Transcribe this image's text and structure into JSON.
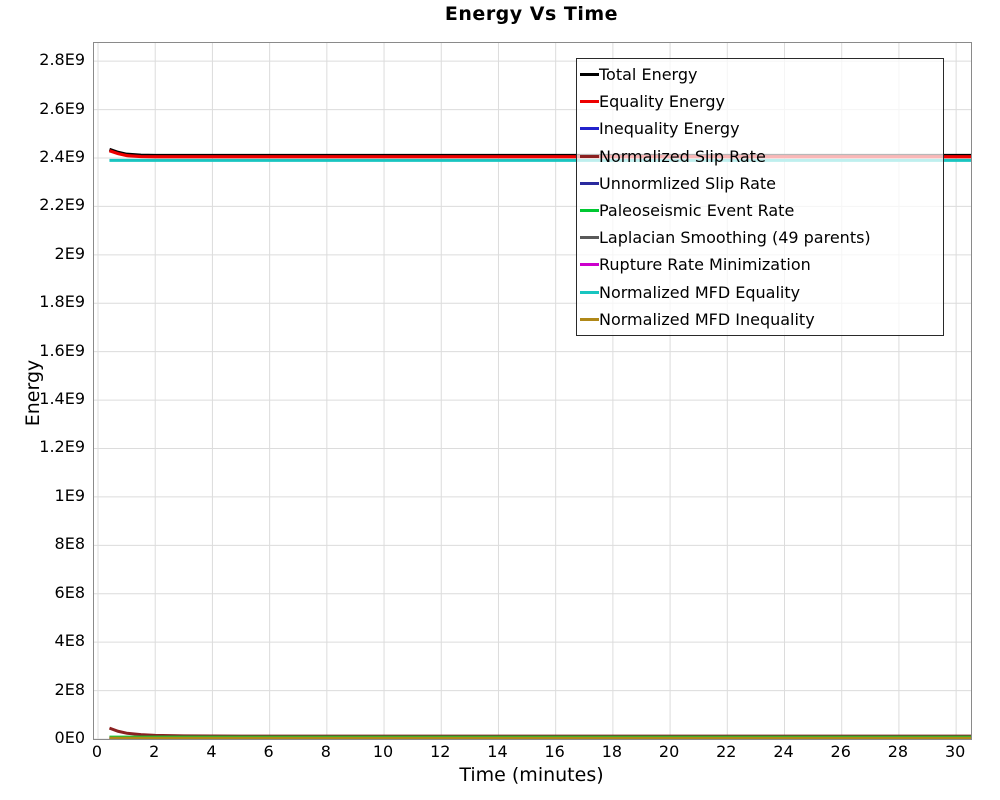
{
  "chart_data": {
    "type": "line",
    "title": "Energy Vs Time",
    "xlabel": "Time (minutes)",
    "ylabel": "Energy",
    "xlim": [
      -0.14,
      30.52
    ],
    "ylim": [
      0,
      2875000000.0
    ],
    "grid": true,
    "legend_position": "top-right",
    "x_ticks": [
      0,
      2,
      4,
      6,
      8,
      10,
      12,
      14,
      16,
      18,
      20,
      22,
      24,
      26,
      28,
      30
    ],
    "y_ticks": [
      {
        "value": 0,
        "label": "0E0"
      },
      {
        "value": 200000000.0,
        "label": "2E8"
      },
      {
        "value": 400000000.0,
        "label": "4E8"
      },
      {
        "value": 600000000.0,
        "label": "6E8"
      },
      {
        "value": 800000000.0,
        "label": "8E8"
      },
      {
        "value": 1000000000.0,
        "label": "1E9"
      },
      {
        "value": 1200000000.0,
        "label": "1.2E9"
      },
      {
        "value": 1400000000.0,
        "label": "1.4E9"
      },
      {
        "value": 1600000000.0,
        "label": "1.6E9"
      },
      {
        "value": 1800000000.0,
        "label": "1.8E9"
      },
      {
        "value": 2000000000.0,
        "label": "2E9"
      },
      {
        "value": 2200000000.0,
        "label": "2.2E9"
      },
      {
        "value": 2400000000.0,
        "label": "2.4E9"
      },
      {
        "value": 2600000000.0,
        "label": "2.6E9"
      },
      {
        "value": 2800000000.0,
        "label": "2.8E9"
      }
    ],
    "x": [
      0.4,
      0.7,
      1.0,
      1.5,
      2.0,
      3.0,
      5.0,
      10.0,
      15.0,
      20.0,
      25.0,
      30.6
    ],
    "series": [
      {
        "name": "Total Energy",
        "color": "#000000",
        "width": 3.4,
        "y": [
          2435000000.0,
          2423000000.0,
          2415000000.0,
          2411000000.0,
          2410000000.0,
          2410000000.0,
          2410000000.0,
          2410000000.0,
          2410000000.0,
          2410000000.0,
          2410000000.0,
          2410000000.0
        ]
      },
      {
        "name": "Equality Energy",
        "color": "#ee0000",
        "width": 3.2,
        "y": [
          2430000000.0,
          2418000000.0,
          2410000000.0,
          2406000000.0,
          2405000000.0,
          2405000000.0,
          2405000000.0,
          2405000000.0,
          2405000000.0,
          2405000000.0,
          2405000000.0,
          2405000000.0
        ]
      },
      {
        "name": "Inequality Energy",
        "color": "#2222cc",
        "width": 3,
        "y": [
          0,
          0,
          0,
          0,
          0,
          0,
          0,
          0,
          0,
          0,
          0,
          0
        ]
      },
      {
        "name": "Normalized Slip Rate",
        "color": "#8b2020",
        "width": 3,
        "y": [
          45000000.0,
          32000000.0,
          24000000.0,
          18000000.0,
          15000000.0,
          13000000.0,
          12000000.0,
          12000000.0,
          12000000.0,
          12000000.0,
          12000000.0,
          12000000.0
        ]
      },
      {
        "name": "Unnormlized Slip Rate",
        "color": "#2a2a9e",
        "width": 3,
        "y": [
          5000000.0,
          5000000.0,
          5000000.0,
          5000000.0,
          5000000.0,
          5000000.0,
          5000000.0,
          5000000.0,
          5000000.0,
          5000000.0,
          5000000.0,
          5000000.0
        ]
      },
      {
        "name": "Paleoseismic Event Rate",
        "color": "#00c832",
        "width": 3,
        "y": [
          8000000.0,
          8000000.0,
          8000000.0,
          8000000.0,
          8000000.0,
          8000000.0,
          8000000.0,
          8000000.0,
          8000000.0,
          8000000.0,
          8000000.0,
          8000000.0
        ]
      },
      {
        "name": "Laplacian Smoothing (49 parents)",
        "color": "#595959",
        "width": 3,
        "y": [
          2000000.0,
          2000000.0,
          2000000.0,
          2000000.0,
          2000000.0,
          2000000.0,
          2000000.0,
          2000000.0,
          2000000.0,
          2000000.0,
          2000000.0,
          2000000.0
        ]
      },
      {
        "name": "Rupture Rate Minimization",
        "color": "#cc00cc",
        "width": 3,
        "y": [
          1000000.0,
          1000000.0,
          1000000.0,
          1000000.0,
          1000000.0,
          1000000.0,
          1000000.0,
          1000000.0,
          1000000.0,
          1000000.0,
          1000000.0,
          1000000.0
        ]
      },
      {
        "name": "Normalized MFD Equality",
        "color": "#18c5c0",
        "width": 3,
        "y": [
          2390000000.0,
          2390000000.0,
          2390000000.0,
          2390000000.0,
          2390000000.0,
          2390000000.0,
          2390000000.0,
          2390000000.0,
          2390000000.0,
          2390000000.0,
          2390000000.0,
          2390000000.0
        ]
      },
      {
        "name": "Normalized MFD Inequality",
        "color": "#b08818",
        "width": 3,
        "y": [
          3500000.0,
          3500000.0,
          3500000.0,
          3500000.0,
          3500000.0,
          3500000.0,
          3500000.0,
          3500000.0,
          3500000.0,
          3500000.0,
          3500000.0,
          3500000.0
        ]
      }
    ],
    "grid_color": "#dcdcdc",
    "plot_border_color": "#8a8a8a"
  }
}
